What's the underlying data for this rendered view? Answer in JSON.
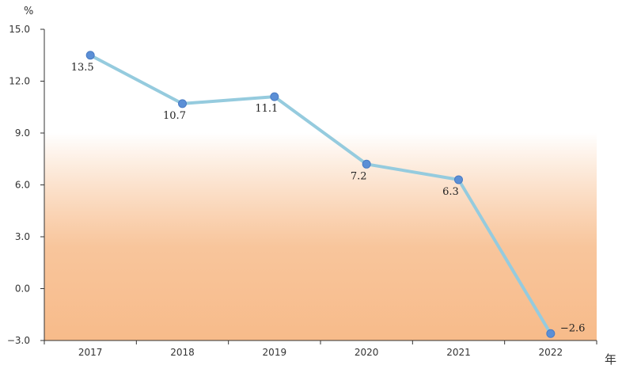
{
  "chart_data": {
    "type": "line",
    "title": "",
    "y_unit": "%",
    "x_unit": "年",
    "categories": [
      "2017",
      "2018",
      "2019",
      "2020",
      "2021",
      "2022"
    ],
    "values": [
      13.5,
      10.7,
      11.1,
      7.2,
      6.3,
      -2.6
    ],
    "value_labels": [
      "13.5",
      "10.7",
      "11.1",
      "7.2",
      "6.3",
      "−2.6"
    ],
    "ylim": [
      -3.0,
      15.0
    ],
    "yticks": [
      -3.0,
      0.0,
      3.0,
      6.0,
      9.0,
      12.0,
      15.0
    ],
    "ytick_labels": [
      "−3.0",
      "0.0",
      "3.0",
      "6.0",
      "9.0",
      "12.0",
      "15.0"
    ],
    "grid": false,
    "colors": {
      "line": "#95cbde",
      "marker": "#5b8fd6",
      "gradient_top": "#ffffff",
      "gradient_bottom": "#f7bb8a",
      "axis": "#333333"
    }
  }
}
